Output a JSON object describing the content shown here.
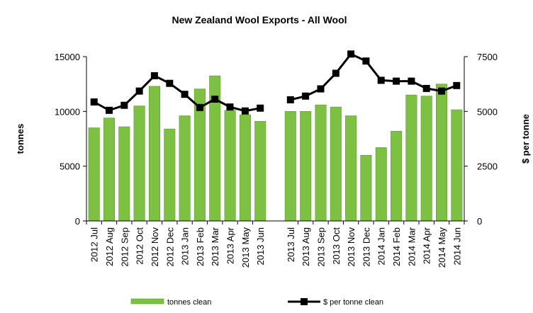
{
  "chart_data": {
    "type": "bar",
    "title": "New Zealand Wool Exports - All Wool",
    "ylabel": "tonnes",
    "y2label": "$ per tonne",
    "ylim": [
      0,
      15000
    ],
    "yticks": [
      0,
      5000,
      10000,
      15000
    ],
    "y2lim": [
      0,
      7500
    ],
    "y2ticks": [
      0,
      2500,
      5000,
      7500
    ],
    "grid": false,
    "legend_position": "bottom",
    "categories": [
      "2012 Jul",
      "2012 Aug",
      "2012 Sep",
      "2012 Oct",
      "2012 Nov",
      "2012 Dec",
      "2013 Jan",
      "2013 Feb",
      "2013 Mar",
      "2013 Apr",
      "2013 May",
      "2013 Jun",
      "2013 Jul",
      "2013 Aug",
      "2013 Sep",
      "2013 Oct",
      "2013 Nov",
      "2013 Dec",
      "2014 Jan",
      "2014 Feb",
      "2014 Mar",
      "2014 Apr",
      "2014 May",
      "2014 Jun"
    ],
    "series": [
      {
        "name": "tonnes clean",
        "type": "bar",
        "axis": "left",
        "color": "#7DC142",
        "values": [
          8500,
          9400,
          8600,
          10500,
          12300,
          8400,
          9600,
          12050,
          13250,
          10100,
          9700,
          9100,
          10000,
          10000,
          10600,
          10400,
          9600,
          6000,
          6700,
          8200,
          11500,
          11400,
          12500,
          10150
        ]
      },
      {
        "name": "$ per tonne clean",
        "type": "line",
        "axis": "right",
        "color": "#000000",
        "values": [
          5430,
          5050,
          5280,
          5930,
          6630,
          6280,
          5780,
          5180,
          5560,
          5200,
          5020,
          5150,
          5530,
          5700,
          6030,
          6740,
          7620,
          7300,
          6420,
          6380,
          6380,
          6050,
          5930,
          6180
        ]
      }
    ]
  }
}
